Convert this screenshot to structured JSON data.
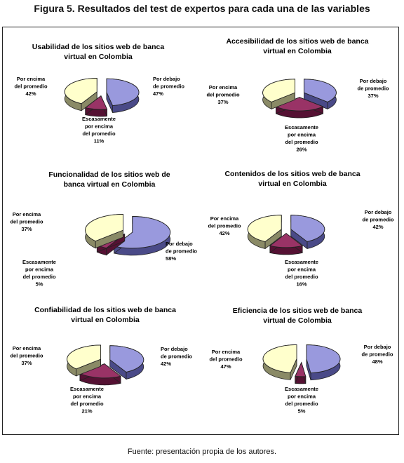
{
  "figure": {
    "title": "Figura 5. Resultados del test de expertos para cada una de las variables",
    "source": "Fuente: presentación propia de los autores."
  },
  "colors": {
    "debajo": "#9999dd",
    "debajo_side": "#4a4a88",
    "encima": "#ffffcc",
    "encima_side": "#8a8a66",
    "escasamente": "#993366",
    "escasamente_side": "#551133"
  },
  "chart_data": [
    {
      "type": "pie",
      "title_lines": [
        "Usabilidad de los sitios web de banca",
        "virtual en Colombia"
      ],
      "labels": [
        {
          "lines": [
            "Por debajo",
            "de promedio"
          ],
          "pct": "47%"
        },
        {
          "lines": [
            "Escasamente",
            "por encima",
            "del promedio"
          ],
          "pct": "11%"
        },
        {
          "lines": [
            "Por encima",
            "del promedio"
          ],
          "pct": "42%"
        }
      ],
      "values": [
        47,
        11,
        42
      ]
    },
    {
      "type": "pie",
      "title_lines": [
        "Accesibilidad de los sitios web de banca",
        "virtual en Colombia"
      ],
      "labels": [
        {
          "lines": [
            "Por debajo",
            "de promedio"
          ],
          "pct": "37%"
        },
        {
          "lines": [
            "Escasamente",
            "por encima",
            "del promedio"
          ],
          "pct": "26%"
        },
        {
          "lines": [
            "Por encima",
            "del promedio"
          ],
          "pct": "37%"
        }
      ],
      "values": [
        37,
        26,
        37
      ]
    },
    {
      "type": "pie",
      "title_lines": [
        "Funcionalidad de los sitios web de",
        "banca virtual en Colombia"
      ],
      "labels": [
        {
          "lines": [
            "Por debajo",
            "de promedio"
          ],
          "pct": "58%"
        },
        {
          "lines": [
            "Escasamente",
            "por encima",
            "del promedio"
          ],
          "pct": "5%"
        },
        {
          "lines": [
            "Por encima",
            "del promedio"
          ],
          "pct": "37%"
        }
      ],
      "values": [
        58,
        5,
        37
      ]
    },
    {
      "type": "pie",
      "title_lines": [
        "Contenidos de los sitios web de banca",
        "virtual en Colombia"
      ],
      "labels": [
        {
          "lines": [
            "Por debajo",
            "de promedio"
          ],
          "pct": "42%"
        },
        {
          "lines": [
            "Escasamente",
            "por encima",
            "del promedio"
          ],
          "pct": "16%"
        },
        {
          "lines": [
            "Por encima",
            "del promedio"
          ],
          "pct": "42%"
        }
      ],
      "values": [
        42,
        16,
        42
      ]
    },
    {
      "type": "pie",
      "title_lines": [
        "Confiabilidad de los sitios web de banca",
        "virtual en Colombia"
      ],
      "labels": [
        {
          "lines": [
            "Por debajo",
            "de promedio"
          ],
          "pct": "42%"
        },
        {
          "lines": [
            "Escasamente",
            "por encima",
            "del promedio"
          ],
          "pct": "21%"
        },
        {
          "lines": [
            "Por encima",
            "del promedio"
          ],
          "pct": "37%"
        }
      ],
      "values": [
        42,
        21,
        37
      ]
    },
    {
      "type": "pie",
      "title_lines": [
        "Eficiencia de los sitios web de banca",
        "virtual de Colombia"
      ],
      "labels": [
        {
          "lines": [
            "Por debajo",
            "de promedio"
          ],
          "pct": "48%"
        },
        {
          "lines": [
            "Escasamente",
            "por encima",
            "del promedio"
          ],
          "pct": "5%"
        },
        {
          "lines": [
            "Por encima",
            "del promedio"
          ],
          "pct": "47%"
        }
      ],
      "values": [
        48,
        5,
        47
      ]
    }
  ]
}
